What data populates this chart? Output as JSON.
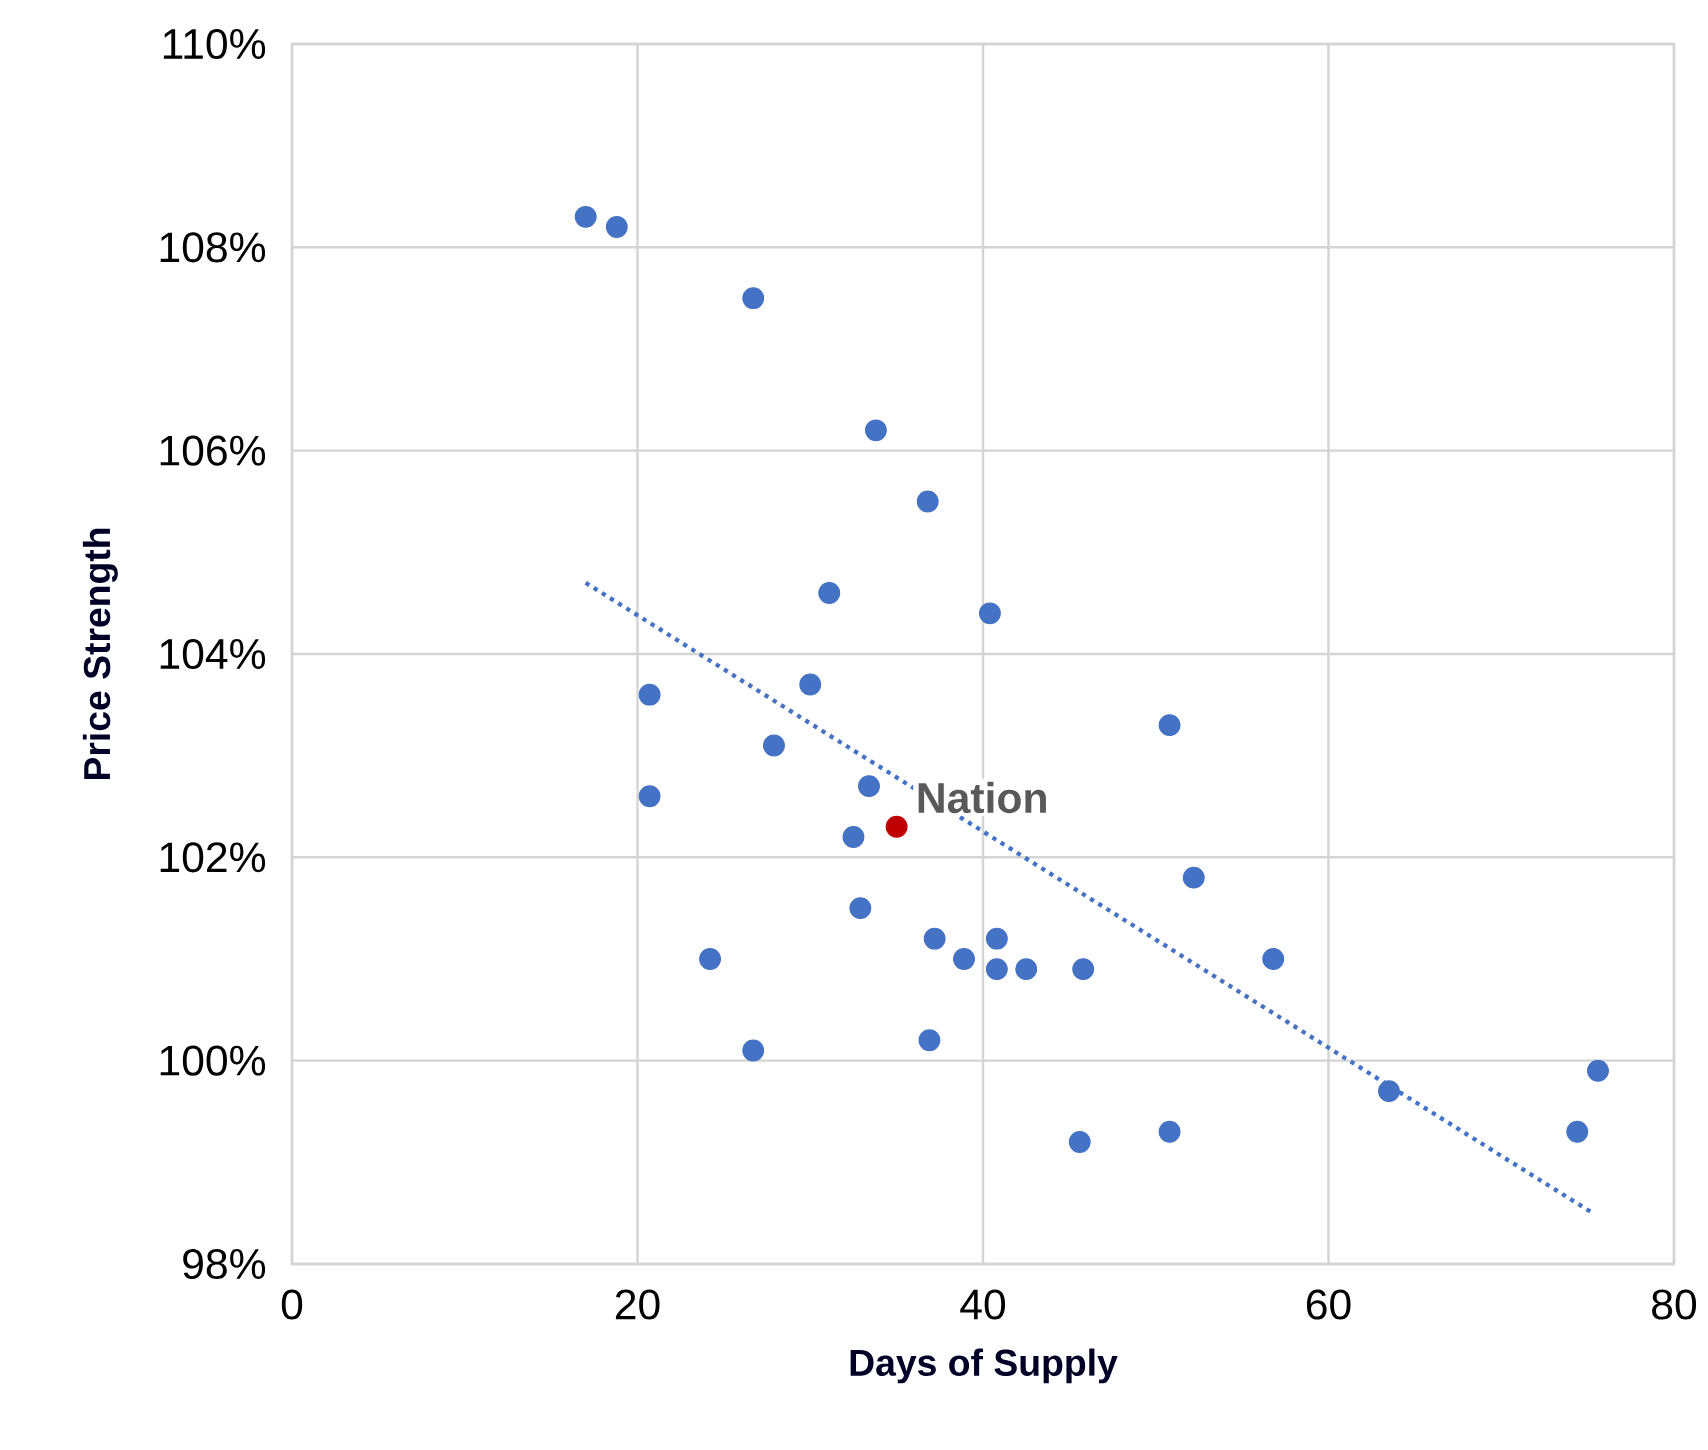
{
  "chart_data": {
    "type": "scatter",
    "xlabel": "Days of Supply",
    "ylabel": "Price Strength",
    "xlim": [
      0,
      80
    ],
    "xticks": [
      0,
      20,
      40,
      60,
      80
    ],
    "ylim": [
      98,
      110
    ],
    "yticks": [
      {
        "value": 98,
        "label": "98%"
      },
      {
        "value": 100,
        "label": "100%"
      },
      {
        "value": 102,
        "label": "102%"
      },
      {
        "value": 104,
        "label": "104%"
      },
      {
        "value": 106,
        "label": "106%"
      },
      {
        "value": 108,
        "label": "108%"
      },
      {
        "value": 110,
        "label": "110%"
      }
    ],
    "grid": true,
    "series": [
      {
        "type": "scatter",
        "marker": "circle",
        "color": "#4472c4",
        "x": [
          17.0,
          18.8,
          26.7,
          33.8,
          36.8,
          31.1,
          40.4,
          20.7,
          30.0,
          27.9,
          33.4,
          20.7,
          50.8,
          32.5,
          32.9,
          52.2,
          37.2,
          38.9,
          40.8,
          40.8,
          42.5,
          45.8,
          56.8,
          24.2,
          26.7,
          36.9,
          45.6,
          50.8,
          63.5,
          74.4,
          75.6
        ],
        "values": [
          108.3,
          108.2,
          107.5,
          106.2,
          105.5,
          104.6,
          104.4,
          103.6,
          103.7,
          103.1,
          102.7,
          102.6,
          103.3,
          102.2,
          101.5,
          101.8,
          101.2,
          101.0,
          101.2,
          100.9,
          100.9,
          100.9,
          101.0,
          101.0,
          100.1,
          100.2,
          99.2,
          99.3,
          99.7,
          99.3,
          99.9
        ]
      },
      {
        "type": "scatter",
        "marker": "circle",
        "name": "Nation",
        "color": "#c00000",
        "x": [
          35.0
        ],
        "values": [
          102.3
        ]
      },
      {
        "type": "line",
        "line_style": "dotted",
        "marker": "none",
        "color": "#4472c4",
        "x": [
          17.0,
          75.3
        ],
        "values": [
          104.7,
          98.5
        ]
      }
    ]
  }
}
